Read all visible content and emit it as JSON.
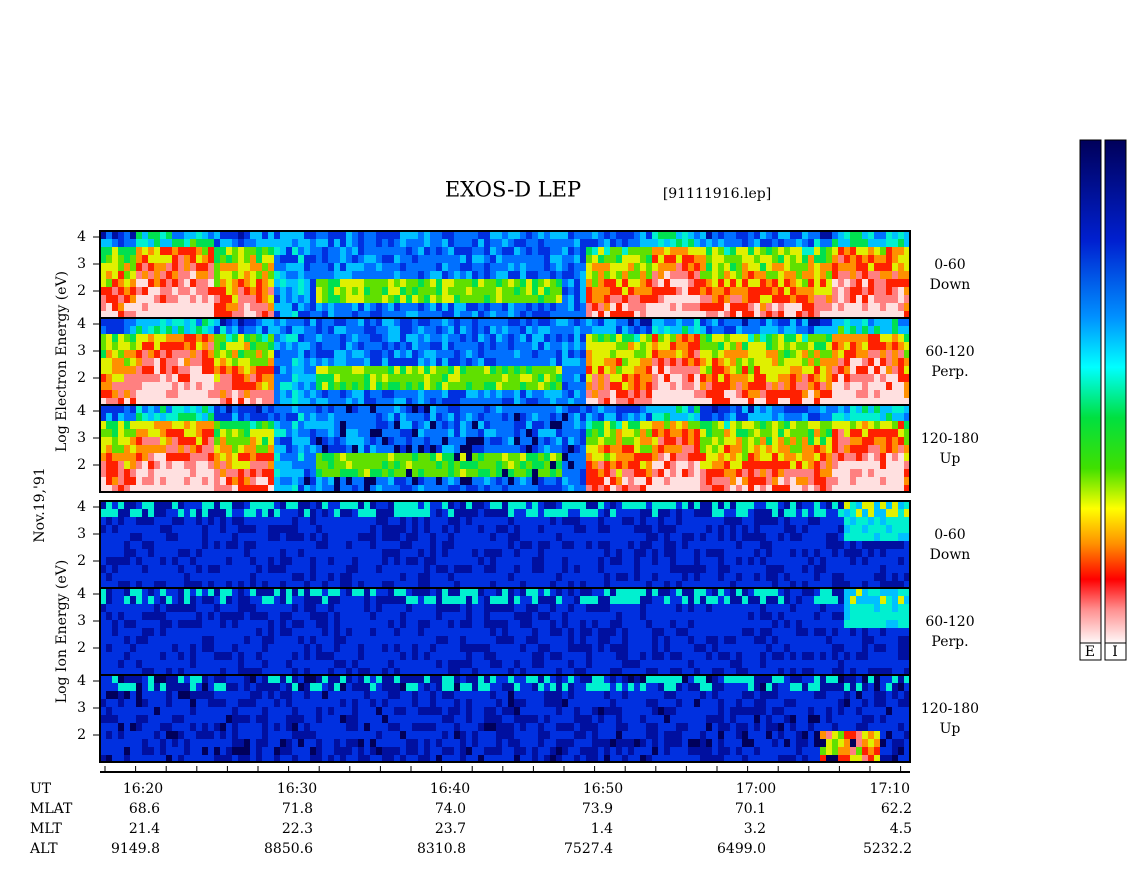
{
  "header": {
    "title": "EXOS-D LEP",
    "file": "[91111916.lep]"
  },
  "date": "Nov.19,'91",
  "groups": [
    {
      "label": "Log Electron Energy (eV)",
      "channels": [
        {
          "range": "0-60",
          "direction": "Down",
          "yticks": [
            4,
            3,
            2
          ]
        },
        {
          "range": "60-120",
          "direction": "Perp.",
          "yticks": [
            4,
            3,
            2
          ]
        },
        {
          "range": "120-180",
          "direction": "Up",
          "yticks": [
            4,
            3,
            2
          ]
        }
      ]
    },
    {
      "label": "Log Ion Energy (eV)",
      "channels": [
        {
          "range": "0-60",
          "direction": "Down",
          "yticks": [
            4,
            3,
            2
          ]
        },
        {
          "range": "60-120",
          "direction": "Perp.",
          "yticks": [
            4,
            3,
            2
          ]
        },
        {
          "range": "120-180",
          "direction": "Up",
          "yticks": [
            4,
            3,
            2
          ]
        }
      ]
    }
  ],
  "time_axis": {
    "rows": [
      {
        "label": "UT",
        "values": [
          "16:20",
          "16:30",
          "16:40",
          "16:50",
          "17:00",
          "17:10"
        ]
      },
      {
        "label": "MLAT",
        "values": [
          "68.6",
          "71.8",
          "74.0",
          "73.9",
          "70.1",
          "62.2"
        ]
      },
      {
        "label": "MLT",
        "values": [
          "21.4",
          "22.3",
          "23.7",
          "1.4",
          "3.2",
          "4.5"
        ]
      },
      {
        "label": "ALT",
        "values": [
          "9149.8",
          "8850.6",
          "8310.8",
          "7527.4",
          "6499.0",
          "5232.2"
        ]
      }
    ]
  },
  "colorbar": {
    "labels": [
      "E",
      "I"
    ]
  }
}
